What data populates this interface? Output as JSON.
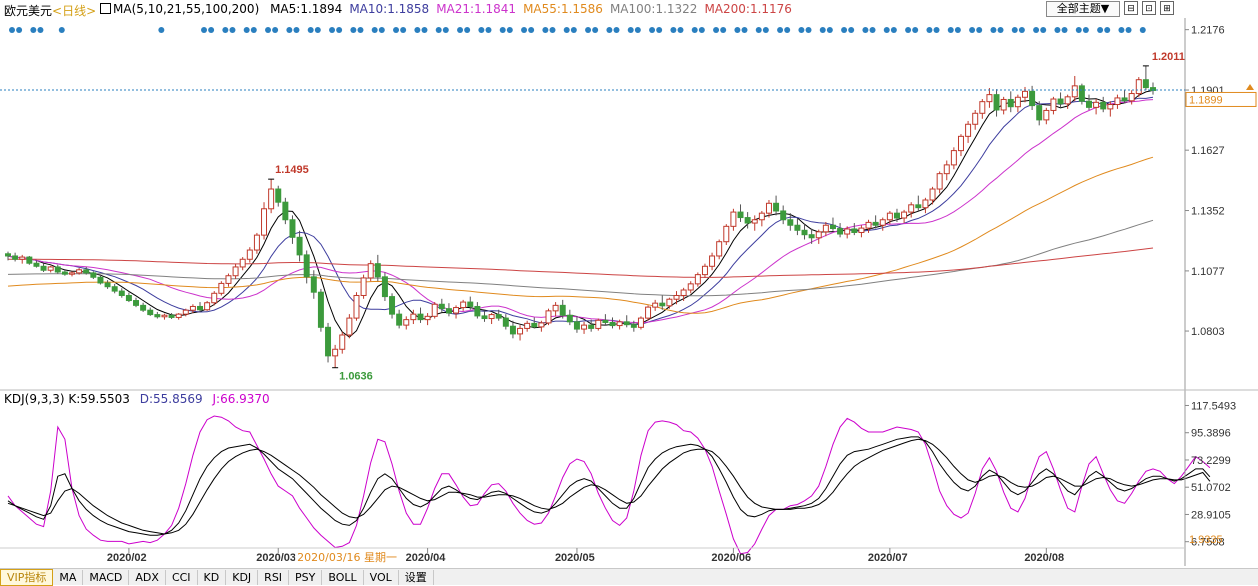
{
  "header": {
    "symbol": "欧元美元",
    "period": "<日线>",
    "ma_set": "MA(5,10,21,55,100,200)",
    "ma_items": [
      {
        "text": "MA5:1.1894",
        "color": "#000000"
      },
      {
        "text": "MA10:1.1858",
        "color": "#3d3d9e"
      },
      {
        "text": "MA21:1.1841",
        "color": "#cc33cc"
      },
      {
        "text": "MA55:1.1586",
        "color": "#e08a1e"
      },
      {
        "text": "MA100:1.1322",
        "color": "#808080"
      },
      {
        "text": "MA200:1.1176",
        "color": "#cc4444"
      }
    ],
    "theme_button": "全部主题▼",
    "window_buttons": [
      "⊟",
      "⊡",
      "⊞"
    ]
  },
  "price_axis": {
    "ticks": [
      "1.2176",
      "1.1901",
      "1.1627",
      "1.1352",
      "1.1077",
      "1.0803"
    ],
    "current": "1.1899"
  },
  "annotations": {
    "high_2020_03": "1.1495",
    "low_2020_03": "1.0636",
    "high_2020_08": "1.2011"
  },
  "kdj": {
    "title": "KDJ(9,3,3)",
    "k": "K:59.5503",
    "d": "D:55.8569",
    "j": "J:66.9370",
    "ticks": [
      "117.5493",
      "95.3896",
      "73.2299",
      "51.0702",
      "28.9105",
      "6.7508"
    ],
    "current": "1.9335"
  },
  "x_axis": {
    "labels": [
      "2020/02",
      "2020/03",
      "2020/04",
      "2020/05",
      "2020/06",
      "2020/07",
      "2020/08"
    ],
    "cursor": "2020/03/16 星期一"
  },
  "toolbar": [
    "VIP指标",
    "MA",
    "MACD",
    "ADX",
    "CCI",
    "KD",
    "KDJ",
    "RSI",
    "PSY",
    "BOLL",
    "VOL",
    "设置"
  ],
  "colors": {
    "up": "#c0392b",
    "down": "#3c9a3c",
    "kdj_k": "#000000",
    "kdj_d": "#000000",
    "kdj_j": "#cc00cc"
  },
  "chart_data": {
    "type": "candlestick",
    "price_range": [
      1.058,
      1.222
    ],
    "kdj_range": [
      0,
      122
    ],
    "candles": [
      [
        1.1155,
        1.1165,
        1.1125,
        1.1145
      ],
      [
        1.1145,
        1.116,
        1.112,
        1.113
      ],
      [
        1.113,
        1.115,
        1.111,
        1.114
      ],
      [
        1.114,
        1.1145,
        1.1105,
        1.1112
      ],
      [
        1.1112,
        1.1125,
        1.1092,
        1.1098
      ],
      [
        1.1098,
        1.111,
        1.1072,
        1.108
      ],
      [
        1.108,
        1.11,
        1.107,
        1.1095
      ],
      [
        1.1095,
        1.1105,
        1.1065,
        1.1072
      ],
      [
        1.1072,
        1.1085,
        1.1055,
        1.1062
      ],
      [
        1.1062,
        1.1075,
        1.1052,
        1.1068
      ],
      [
        1.1068,
        1.109,
        1.106,
        1.1082
      ],
      [
        1.1082,
        1.1095,
        1.106,
        1.1068
      ],
      [
        1.1068,
        1.1075,
        1.104,
        1.1048
      ],
      [
        1.1048,
        1.106,
        1.1015,
        1.1022
      ],
      [
        1.1022,
        1.1035,
        1.0995,
        1.1005
      ],
      [
        1.1005,
        1.1018,
        1.0975,
        1.0985
      ],
      [
        1.0985,
        1.0998,
        1.0955,
        1.0965
      ],
      [
        1.0965,
        1.0978,
        1.0935,
        1.0942
      ],
      [
        1.0942,
        1.0955,
        1.0912,
        1.092
      ],
      [
        1.092,
        1.0932,
        1.089,
        1.0898
      ],
      [
        1.0898,
        1.091,
        1.0872,
        1.0878
      ],
      [
        1.0878,
        1.089,
        1.086,
        1.0868
      ],
      [
        1.0868,
        1.0882,
        1.0855,
        1.0875
      ],
      [
        1.0875,
        1.0885,
        1.0858,
        1.0865
      ],
      [
        1.0865,
        1.0885,
        1.0855,
        1.088
      ],
      [
        1.088,
        1.0905,
        1.087,
        1.0898
      ],
      [
        1.0898,
        1.0925,
        1.0885,
        1.0915
      ],
      [
        1.0915,
        1.0935,
        1.089,
        1.09
      ],
      [
        1.09,
        1.094,
        1.0895,
        1.0932
      ],
      [
        1.0932,
        1.0985,
        1.092,
        1.0975
      ],
      [
        1.0975,
        1.103,
        1.0965,
        1.102
      ],
      [
        1.102,
        1.1065,
        1.1005,
        1.1055
      ],
      [
        1.1055,
        1.111,
        1.104,
        1.1095
      ],
      [
        1.1095,
        1.114,
        1.108,
        1.113
      ],
      [
        1.113,
        1.1185,
        1.1115,
        1.1172
      ],
      [
        1.1172,
        1.125,
        1.1155,
        1.124
      ],
      [
        1.124,
        1.139,
        1.122,
        1.136
      ],
      [
        1.136,
        1.1495,
        1.134,
        1.145
      ],
      [
        1.145,
        1.1465,
        1.137,
        1.139
      ],
      [
        1.139,
        1.141,
        1.129,
        1.131
      ],
      [
        1.131,
        1.133,
        1.12,
        1.123
      ],
      [
        1.123,
        1.126,
        1.112,
        1.115
      ],
      [
        1.115,
        1.117,
        1.102,
        1.105
      ],
      [
        1.105,
        1.108,
        1.095,
        1.098
      ],
      [
        1.098,
        1.0995,
        1.08,
        1.082
      ],
      [
        1.082,
        1.084,
        1.066,
        1.069
      ],
      [
        1.069,
        1.074,
        1.0636,
        1.072
      ],
      [
        1.072,
        1.08,
        1.07,
        1.0785
      ],
      [
        1.0785,
        1.088,
        1.077,
        1.0862
      ],
      [
        1.0862,
        1.098,
        1.085,
        1.0965
      ],
      [
        1.0965,
        1.106,
        1.095,
        1.1045
      ],
      [
        1.1045,
        1.1125,
        1.103,
        1.111
      ],
      [
        1.111,
        1.115,
        1.103,
        1.105
      ],
      [
        1.105,
        1.107,
        1.094,
        1.096
      ],
      [
        1.096,
        1.0975,
        1.086,
        1.088
      ],
      [
        1.088,
        1.09,
        1.0815,
        1.083
      ],
      [
        1.083,
        1.087,
        1.081,
        1.0855
      ],
      [
        1.0855,
        1.09,
        1.0835,
        1.088
      ],
      [
        1.088,
        1.091,
        1.084,
        1.0855
      ],
      [
        1.0855,
        1.0885,
        1.083,
        1.087
      ],
      [
        1.087,
        1.0935,
        1.086,
        1.0925
      ],
      [
        1.0925,
        1.095,
        1.089,
        1.0905
      ],
      [
        1.0905,
        1.093,
        1.087,
        1.0885
      ],
      [
        1.0885,
        1.092,
        1.086,
        1.091
      ],
      [
        1.091,
        1.0945,
        1.0895,
        1.0935
      ],
      [
        1.0935,
        1.096,
        1.09,
        1.0915
      ],
      [
        1.0915,
        1.0935,
        1.086,
        1.0872
      ],
      [
        1.0872,
        1.0895,
        1.0845,
        1.086
      ],
      [
        1.086,
        1.0885,
        1.0835,
        1.0878
      ],
      [
        1.0878,
        1.09,
        1.085,
        1.0862
      ],
      [
        1.0862,
        1.088,
        1.081,
        1.0825
      ],
      [
        1.0825,
        1.085,
        1.077,
        1.079
      ],
      [
        1.079,
        1.083,
        1.076,
        1.0815
      ],
      [
        1.0815,
        1.085,
        1.08,
        1.0838
      ],
      [
        1.0838,
        1.0865,
        1.0815,
        1.0822
      ],
      [
        1.0822,
        1.085,
        1.08,
        1.084
      ],
      [
        1.084,
        1.0905,
        1.083,
        1.0895
      ],
      [
        1.0895,
        1.0935,
        1.087,
        1.092
      ],
      [
        1.092,
        1.0945,
        1.086,
        1.0875
      ],
      [
        1.0875,
        1.09,
        1.083,
        1.0845
      ],
      [
        1.0845,
        1.087,
        1.0795,
        1.0812
      ],
      [
        1.0812,
        1.0845,
        1.079,
        1.083
      ],
      [
        1.083,
        1.0855,
        1.08,
        1.0815
      ],
      [
        1.0815,
        1.086,
        1.0805,
        1.0852
      ],
      [
        1.0852,
        1.088,
        1.083,
        1.0842
      ],
      [
        1.0842,
        1.0865,
        1.0815,
        1.0828
      ],
      [
        1.0828,
        1.0855,
        1.081,
        1.0845
      ],
      [
        1.0845,
        1.0875,
        1.082,
        1.0832
      ],
      [
        1.0832,
        1.085,
        1.08,
        1.082
      ],
      [
        1.082,
        1.087,
        1.081,
        1.0862
      ],
      [
        1.0862,
        1.092,
        1.085,
        1.0912
      ],
      [
        1.0912,
        1.0945,
        1.0895,
        1.093
      ],
      [
        1.093,
        1.0965,
        1.09,
        1.0918
      ],
      [
        1.0918,
        1.0955,
        1.0905,
        1.0948
      ],
      [
        1.0948,
        1.0985,
        1.0925,
        1.0965
      ],
      [
        1.0965,
        1.1,
        1.094,
        1.099
      ],
      [
        1.099,
        1.103,
        1.0975,
        1.1018
      ],
      [
        1.1018,
        1.107,
        1.1005,
        1.106
      ],
      [
        1.106,
        1.111,
        1.1045,
        1.1098
      ],
      [
        1.1098,
        1.116,
        1.108,
        1.1145
      ],
      [
        1.1145,
        1.122,
        1.113,
        1.121
      ],
      [
        1.121,
        1.129,
        1.1195,
        1.128
      ],
      [
        1.128,
        1.136,
        1.126,
        1.1345
      ],
      [
        1.1345,
        1.138,
        1.13,
        1.132
      ],
      [
        1.132,
        1.1345,
        1.127,
        1.1295
      ],
      [
        1.1295,
        1.133,
        1.126,
        1.131
      ],
      [
        1.131,
        1.135,
        1.128,
        1.134
      ],
      [
        1.134,
        1.14,
        1.132,
        1.1385
      ],
      [
        1.1385,
        1.142,
        1.133,
        1.135
      ],
      [
        1.135,
        1.1375,
        1.129,
        1.131
      ],
      [
        1.131,
        1.134,
        1.126,
        1.1285
      ],
      [
        1.1285,
        1.1315,
        1.124,
        1.1262
      ],
      [
        1.1262,
        1.129,
        1.122,
        1.1242
      ],
      [
        1.1242,
        1.127,
        1.12,
        1.1228
      ],
      [
        1.1228,
        1.1265,
        1.12,
        1.1255
      ],
      [
        1.1255,
        1.13,
        1.1235,
        1.1285
      ],
      [
        1.1285,
        1.132,
        1.126,
        1.127
      ],
      [
        1.127,
        1.1295,
        1.123,
        1.1245
      ],
      [
        1.1245,
        1.128,
        1.1225,
        1.1268
      ],
      [
        1.1268,
        1.1295,
        1.124,
        1.1252
      ],
      [
        1.1252,
        1.1285,
        1.123,
        1.1272
      ],
      [
        1.1272,
        1.131,
        1.125,
        1.1298
      ],
      [
        1.1298,
        1.133,
        1.127,
        1.1285
      ],
      [
        1.1285,
        1.132,
        1.126,
        1.131
      ],
      [
        1.131,
        1.135,
        1.129,
        1.134
      ],
      [
        1.134,
        1.136,
        1.13,
        1.1318
      ],
      [
        1.1318,
        1.1355,
        1.1295,
        1.1345
      ],
      [
        1.1345,
        1.139,
        1.132,
        1.1378
      ],
      [
        1.1378,
        1.142,
        1.135,
        1.1365
      ],
      [
        1.1365,
        1.141,
        1.134,
        1.14
      ],
      [
        1.14,
        1.146,
        1.138,
        1.145
      ],
      [
        1.145,
        1.153,
        1.143,
        1.152
      ],
      [
        1.152,
        1.158,
        1.149,
        1.156
      ],
      [
        1.156,
        1.164,
        1.154,
        1.1625
      ],
      [
        1.1625,
        1.17,
        1.16,
        1.169
      ],
      [
        1.169,
        1.176,
        1.166,
        1.1745
      ],
      [
        1.1745,
        1.181,
        1.172,
        1.1795
      ],
      [
        1.1795,
        1.186,
        1.177,
        1.1848
      ],
      [
        1.1848,
        1.191,
        1.182,
        1.188
      ],
      [
        1.188,
        1.1905,
        1.178,
        1.181
      ],
      [
        1.181,
        1.187,
        1.179,
        1.1858
      ],
      [
        1.1858,
        1.1895,
        1.18,
        1.1825
      ],
      [
        1.1825,
        1.188,
        1.18,
        1.1868
      ],
      [
        1.1868,
        1.1915,
        1.1845,
        1.1895
      ],
      [
        1.1895,
        1.192,
        1.181,
        1.183
      ],
      [
        1.183,
        1.185,
        1.174,
        1.1765
      ],
      [
        1.1765,
        1.182,
        1.1745,
        1.1808
      ],
      [
        1.1808,
        1.187,
        1.179,
        1.186
      ],
      [
        1.186,
        1.189,
        1.182,
        1.1838
      ],
      [
        1.1838,
        1.188,
        1.1815,
        1.187
      ],
      [
        1.187,
        1.1965,
        1.185,
        1.192
      ],
      [
        1.192,
        1.193,
        1.1835,
        1.185
      ],
      [
        1.185,
        1.188,
        1.181,
        1.1822
      ],
      [
        1.1822,
        1.186,
        1.179,
        1.1845
      ],
      [
        1.1845,
        1.187,
        1.18,
        1.1815
      ],
      [
        1.1815,
        1.185,
        1.178,
        1.1835
      ],
      [
        1.1835,
        1.188,
        1.1815,
        1.1865
      ],
      [
        1.1865,
        1.19,
        1.184,
        1.1852
      ],
      [
        1.1852,
        1.19,
        1.1835,
        1.1885
      ],
      [
        1.1885,
        1.196,
        1.187,
        1.1948
      ],
      [
        1.1948,
        1.2011,
        1.19,
        1.1912
      ],
      [
        1.1912,
        1.1935,
        1.188,
        1.1899
      ]
    ],
    "kdj_K": [
      40,
      36,
      33,
      30,
      27,
      25,
      36,
      60,
      62,
      50,
      40,
      33,
      28,
      24,
      21,
      19,
      17,
      15,
      14,
      13,
      12,
      12,
      13,
      16,
      22,
      32,
      45,
      58,
      68,
      75,
      80,
      83,
      84,
      85,
      86,
      83,
      78,
      72,
      66,
      62,
      58,
      52,
      46,
      40,
      34,
      29,
      24,
      21,
      20,
      24,
      34,
      47,
      58,
      62,
      58,
      50,
      42,
      37,
      35,
      38,
      44,
      50,
      52,
      49,
      45,
      42,
      41,
      44,
      47,
      48,
      46,
      42,
      38,
      34,
      31,
      30,
      32,
      38,
      45,
      52,
      56,
      58,
      56,
      50,
      44,
      38,
      34,
      34,
      42,
      55,
      67,
      74,
      79,
      82,
      84,
      85,
      86,
      85,
      82,
      76,
      66,
      55,
      43,
      33,
      28,
      27,
      29,
      32,
      33,
      33,
      34,
      35,
      36,
      38,
      42,
      50,
      60,
      70,
      77,
      80,
      81,
      82,
      84,
      86,
      88,
      90,
      91,
      92,
      92,
      88,
      80,
      70,
      62,
      55,
      50,
      48,
      52,
      60,
      65,
      62,
      55,
      48,
      45,
      48,
      55,
      62,
      66,
      62,
      55,
      48,
      45,
      52,
      60,
      64,
      60,
      55,
      50,
      48,
      50,
      54,
      58,
      60,
      60,
      58,
      56,
      58,
      62,
      66,
      66,
      59.55
    ],
    "kdj_D": [
      38,
      36,
      34,
      32,
      30,
      28,
      30,
      40,
      48,
      50,
      46,
      41,
      36,
      32,
      28,
      25,
      22,
      20,
      18,
      16,
      15,
      14,
      13,
      14,
      16,
      21,
      29,
      39,
      49,
      58,
      66,
      72,
      76,
      79,
      81,
      82,
      80,
      77,
      73,
      69,
      65,
      61,
      56,
      51,
      45,
      40,
      35,
      30,
      27,
      26,
      29,
      35,
      42,
      49,
      52,
      51,
      48,
      45,
      42,
      40,
      41,
      44,
      47,
      47,
      46,
      45,
      43,
      43,
      44,
      45,
      45,
      44,
      42,
      39,
      36,
      34,
      33,
      35,
      38,
      43,
      47,
      51,
      53,
      52,
      49,
      45,
      41,
      38,
      39,
      44,
      52,
      59,
      66,
      71,
      75,
      79,
      81,
      82,
      82,
      80,
      75,
      68,
      60,
      51,
      43,
      38,
      35,
      34,
      33,
      33,
      33,
      34,
      34,
      35,
      37,
      41,
      47,
      55,
      62,
      68,
      72,
      75,
      78,
      81,
      83,
      85,
      87,
      89,
      90,
      89,
      86,
      81,
      75,
      68,
      62,
      57,
      55,
      57,
      60,
      61,
      59,
      55,
      52,
      51,
      52,
      55,
      59,
      60,
      58,
      55,
      52,
      52,
      55,
      58,
      59,
      58,
      55,
      53,
      52,
      53,
      55,
      57,
      58,
      58,
      57,
      57,
      59,
      61,
      63,
      55.86
    ],
    "kdj_J": [
      44,
      36,
      31,
      26,
      21,
      19,
      48,
      100,
      90,
      50,
      28,
      17,
      12,
      8,
      7,
      7,
      7,
      5,
      6,
      7,
      6,
      8,
      13,
      20,
      34,
      54,
      77,
      96,
      106,
      109,
      108,
      105,
      100,
      97,
      96,
      85,
      74,
      62,
      52,
      48,
      44,
      34,
      26,
      18,
      12,
      7,
      2,
      3,
      6,
      20,
      44,
      71,
      90,
      88,
      70,
      48,
      30,
      21,
      21,
      34,
      50,
      62,
      62,
      53,
      43,
      36,
      37,
      46,
      53,
      54,
      48,
      38,
      30,
      24,
      21,
      22,
      30,
      44,
      59,
      70,
      74,
      72,
      62,
      46,
      34,
      24,
      20,
      26,
      48,
      77,
      97,
      104,
      105,
      104,
      102,
      97,
      96,
      91,
      82,
      68,
      48,
      29,
      9,
      -3,
      -2,
      5,
      17,
      28,
      33,
      33,
      36,
      37,
      40,
      44,
      52,
      68,
      86,
      100,
      107,
      104,
      99,
      96,
      96,
      96,
      98,
      100,
      99,
      98,
      96,
      86,
      68,
      48,
      36,
      29,
      26,
      30,
      46,
      66,
      75,
      64,
      47,
      34,
      31,
      42,
      61,
      76,
      80,
      66,
      49,
      34,
      31,
      52,
      70,
      76,
      62,
      49,
      40,
      38,
      46,
      56,
      64,
      66,
      64,
      58,
      54,
      60,
      68,
      76,
      72,
      66.94
    ]
  }
}
